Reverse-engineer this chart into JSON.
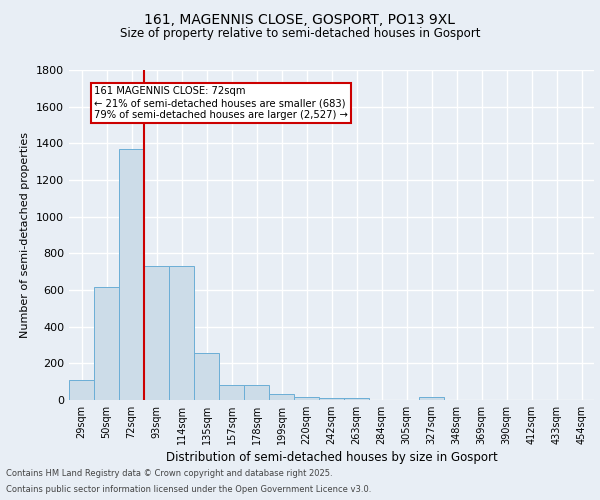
{
  "title_line1": "161, MAGENNIS CLOSE, GOSPORT, PO13 9XL",
  "title_line2": "Size of property relative to semi-detached houses in Gosport",
  "xlabel": "Distribution of semi-detached houses by size in Gosport",
  "ylabel": "Number of semi-detached properties",
  "categories": [
    "29sqm",
    "50sqm",
    "72sqm",
    "93sqm",
    "114sqm",
    "135sqm",
    "157sqm",
    "178sqm",
    "199sqm",
    "220sqm",
    "242sqm",
    "263sqm",
    "284sqm",
    "305sqm",
    "327sqm",
    "348sqm",
    "369sqm",
    "390sqm",
    "412sqm",
    "433sqm",
    "454sqm"
  ],
  "values": [
    110,
    615,
    1370,
    730,
    730,
    255,
    80,
    80,
    35,
    18,
    10,
    10,
    0,
    0,
    18,
    0,
    0,
    0,
    0,
    0,
    0
  ],
  "bar_color": "#ccdce8",
  "bar_edge_color": "#6baed6",
  "red_line_index": 2,
  "annotation_text": "161 MAGENNIS CLOSE: 72sqm\n← 21% of semi-detached houses are smaller (683)\n79% of semi-detached houses are larger (2,527) →",
  "ylim": [
    0,
    1800
  ],
  "yticks": [
    0,
    200,
    400,
    600,
    800,
    1000,
    1200,
    1400,
    1600,
    1800
  ],
  "bg_color": "#e8eef5",
  "plot_bg_color": "#e8eef5",
  "grid_color": "#ffffff",
  "footer_line1": "Contains HM Land Registry data © Crown copyright and database right 2025.",
  "footer_line2": "Contains public sector information licensed under the Open Government Licence v3.0."
}
